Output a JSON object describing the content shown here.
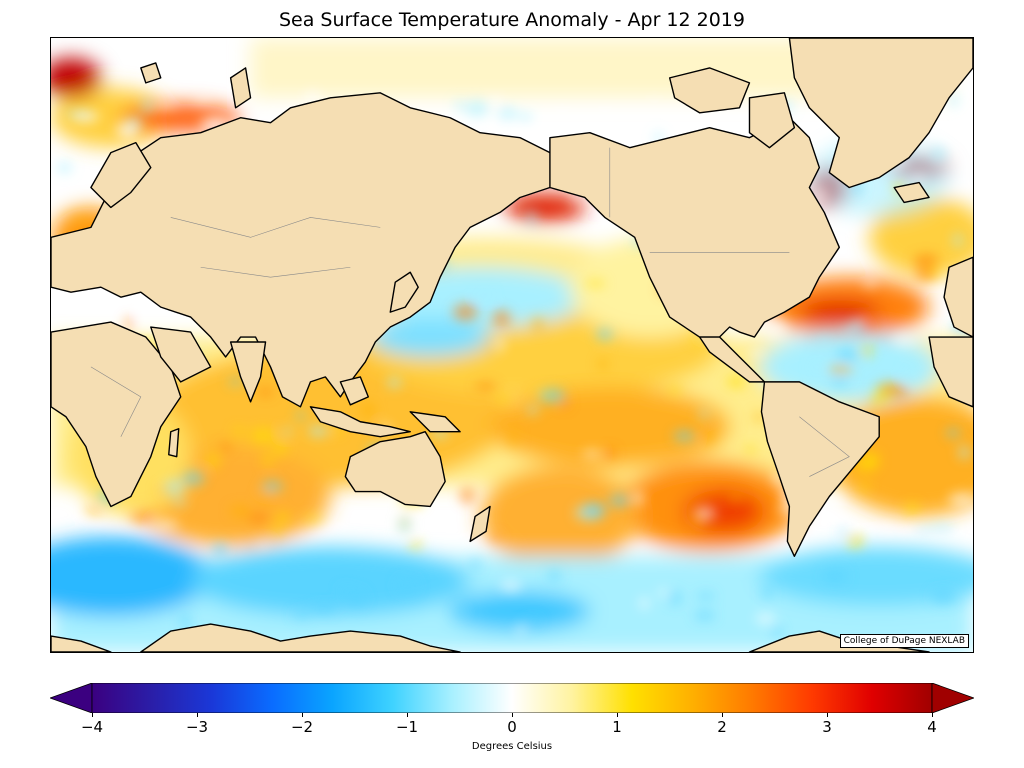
{
  "title": "Sea Surface Temperature Anomaly - Apr 12 2019",
  "credit": "College of DuPage NEXLAB",
  "colorbar": {
    "label": "Degrees Celsius",
    "min": -4,
    "max": 4,
    "ticks": [
      "−4",
      "−3",
      "−2",
      "−1",
      "0",
      "1",
      "2",
      "3",
      "4"
    ],
    "tick_values": [
      -4,
      -3,
      -2,
      -1,
      0,
      1,
      2,
      3,
      4
    ],
    "colors": [
      "#3b0080",
      "#2a1ea8",
      "#1a38d8",
      "#0a6cff",
      "#0aa4ff",
      "#3ed2ff",
      "#a8f0ff",
      "#ffffff",
      "#fff3a0",
      "#ffe000",
      "#ffb000",
      "#ff7a00",
      "#ff3a00",
      "#e00000",
      "#a00000"
    ]
  },
  "map": {
    "land_color": "#f5deb3",
    "coast_color": "#000000"
  }
}
